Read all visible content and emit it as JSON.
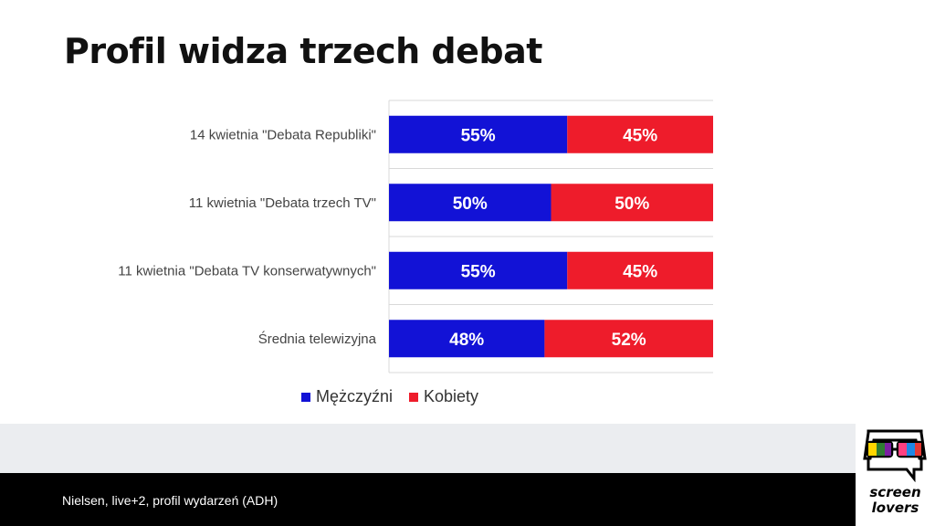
{
  "title": "Profil widza trzech debat",
  "footer": {
    "source": "Nielsen, live+2, profil wydarzeń (ADH)"
  },
  "logo": {
    "line1": "screen",
    "line2": "lovers"
  },
  "colors": {
    "men": "#1212d6",
    "women": "#ee1c2b",
    "grid": "#d9d9d9"
  },
  "chart_data": {
    "type": "bar",
    "stacked": true,
    "orientation": "horizontal",
    "categories": [
      "14 kwietnia \"Debata Republiki\"",
      "11 kwietnia \"Debata trzech TV\"",
      "11 kwietnia \"Debata TV konserwatywnych\"",
      "Średnia telewizyjna"
    ],
    "series": [
      {
        "name": "Mężczyźni",
        "values": [
          55,
          50,
          55,
          48
        ],
        "labels": [
          "55%",
          "50%",
          "55%",
          "48%"
        ]
      },
      {
        "name": "Kobiety",
        "values": [
          45,
          50,
          45,
          52
        ],
        "labels": [
          "45%",
          "50%",
          "45%",
          "52%"
        ]
      }
    ],
    "xlim": [
      0,
      100
    ],
    "legend": "bottom"
  }
}
